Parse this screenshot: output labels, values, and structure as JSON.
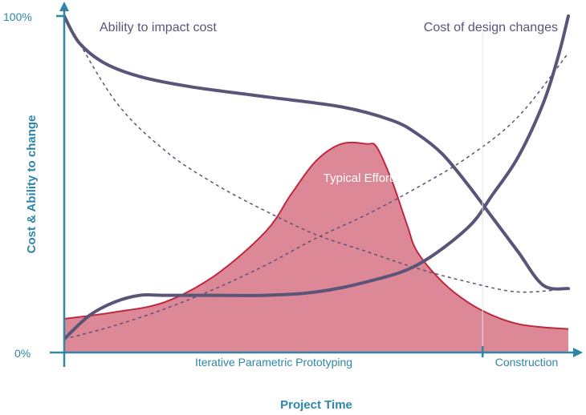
{
  "chart_data": {
    "type": "area",
    "xlabel": "Project Time",
    "ylabel": "Cost & Ability to change",
    "ylim": [
      0,
      100
    ],
    "y_ticks": [
      "0%",
      "100%"
    ],
    "phases": [
      "Iterative Parametric Prototyping",
      "Construction"
    ],
    "x_domain": [
      0,
      100
    ],
    "phase_boundary_x": 83,
    "colors": {
      "axis": "#2f86a9",
      "curve": "#5a5478",
      "effort_fill": "#dd8896",
      "effort_stroke": "#c0283f"
    },
    "series": [
      {
        "name": "Ability to impact cost",
        "style": "solid",
        "x": [
          0,
          3,
          8,
          15,
          25,
          40,
          55,
          65,
          70,
          75,
          80,
          85,
          90,
          95,
          100
        ],
        "y": [
          100,
          92,
          86,
          82,
          79,
          76,
          73,
          69,
          65,
          59,
          50,
          40,
          30,
          20,
          19
        ]
      },
      {
        "name": "Cost of design changes",
        "style": "solid",
        "x": [
          0,
          5,
          10,
          15,
          20,
          30,
          40,
          50,
          60,
          70,
          80,
          85,
          90,
          95,
          98,
          100
        ],
        "y": [
          4,
          11,
          15,
          17,
          17,
          17,
          17,
          18,
          21,
          26,
          37,
          47,
          58,
          74,
          88,
          100
        ]
      },
      {
        "name": "",
        "style": "dashed",
        "x": [
          0,
          10,
          20,
          30,
          40,
          50,
          60,
          70,
          80,
          90,
          100
        ],
        "y": [
          100,
          75,
          60,
          50,
          42,
          35,
          30,
          25,
          21,
          18,
          19
        ]
      },
      {
        "name": "",
        "style": "dashed",
        "x": [
          0,
          10,
          20,
          30,
          40,
          50,
          60,
          70,
          80,
          90,
          100
        ],
        "y": [
          4,
          8,
          13,
          19,
          26,
          34,
          41,
          49,
          58,
          70,
          89
        ]
      },
      {
        "name": "Typical Effort",
        "style": "area",
        "x": [
          0,
          10,
          20,
          30,
          40,
          45,
          50,
          55,
          60,
          62,
          65,
          68,
          70,
          75,
          80,
          85,
          90,
          95,
          100
        ],
        "y": [
          10,
          12,
          15,
          23,
          36,
          47,
          57,
          62,
          62,
          61,
          51,
          38,
          30,
          21,
          15,
          11,
          8.5,
          7.5,
          7
        ]
      }
    ]
  }
}
